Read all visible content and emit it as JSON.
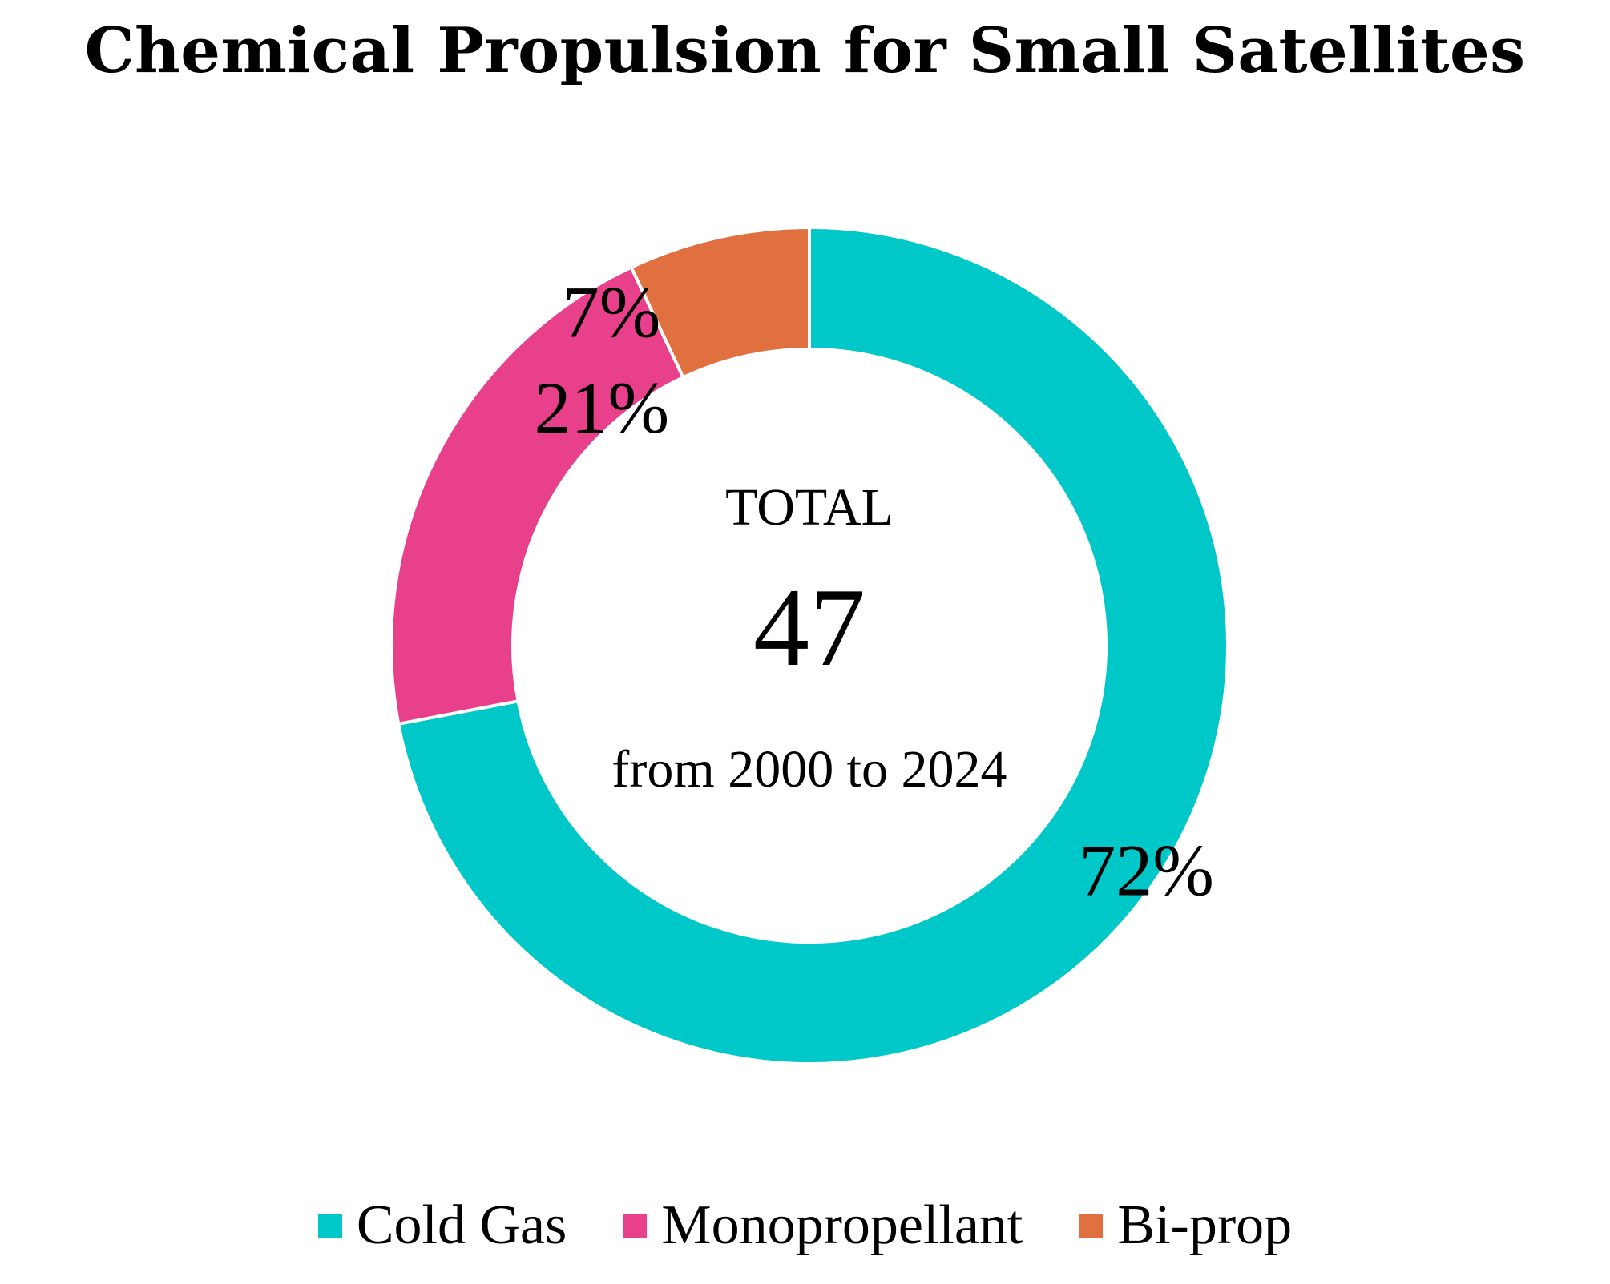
{
  "chart_data": {
    "type": "donut",
    "title": "Chemical Propulsion for Small Satellites",
    "center": {
      "label_top": "TOTAL",
      "value": "47",
      "label_bottom": "from 2000 to 2024"
    },
    "slices": [
      {
        "name": "Cold Gas",
        "value": 72,
        "label": "72%",
        "color": "#00C8C8"
      },
      {
        "name": "Monopropellant",
        "value": 21,
        "label": "21%",
        "color": "#E8408A"
      },
      {
        "name": "Bi-prop",
        "value": 7,
        "label": "7%",
        "color": "#E07040"
      }
    ],
    "legend_position": "bottom"
  }
}
